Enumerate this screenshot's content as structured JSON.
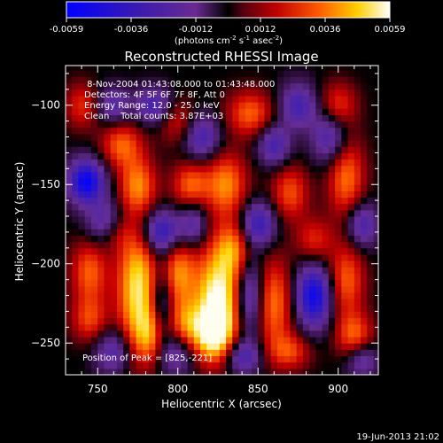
{
  "colorbar": {
    "tick_labels": [
      "-0.0059",
      "-0.0036",
      "-0.0012",
      "0.0012",
      "0.0036",
      "0.0059"
    ],
    "unit_label_parts": [
      "(photons cm",
      "-2",
      " s",
      "-1",
      " asec",
      "-2",
      ")"
    ],
    "range": [
      -0.0059,
      0.0059
    ]
  },
  "chart_data": {
    "type": "heatmap",
    "title": "Reconstructed RHESSI Image",
    "xlabel": "Heliocentric X (arcsec)",
    "ylabel": "Heliocentric Y (arcsec)",
    "xlim": [
      730,
      925
    ],
    "ylim": [
      -270,
      -75
    ],
    "x_ticks": [
      750,
      800,
      850,
      900
    ],
    "y_ticks": [
      -100,
      -150,
      -200,
      -250
    ],
    "x_tick_labels": [
      "750",
      "800",
      "850",
      "900"
    ],
    "y_tick_labels": [
      "−100",
      "−150",
      "−200",
      "−250"
    ],
    "annotations": [
      " 8-Nov-2004 01:43:08.000 to 01:43:48.000",
      "Detectors: 4F 5F 6F 7F 8F, Att 0",
      "Energy Range: 12.0 - 25.0 keV",
      "Clean    Total counts: 3.87E+03"
    ],
    "peak_text": "Position of Peak = [825,-221]",
    "peak": [
      825,
      -221
    ]
  },
  "footer": {
    "timestamp": "19-Jun-2013 21:02"
  }
}
